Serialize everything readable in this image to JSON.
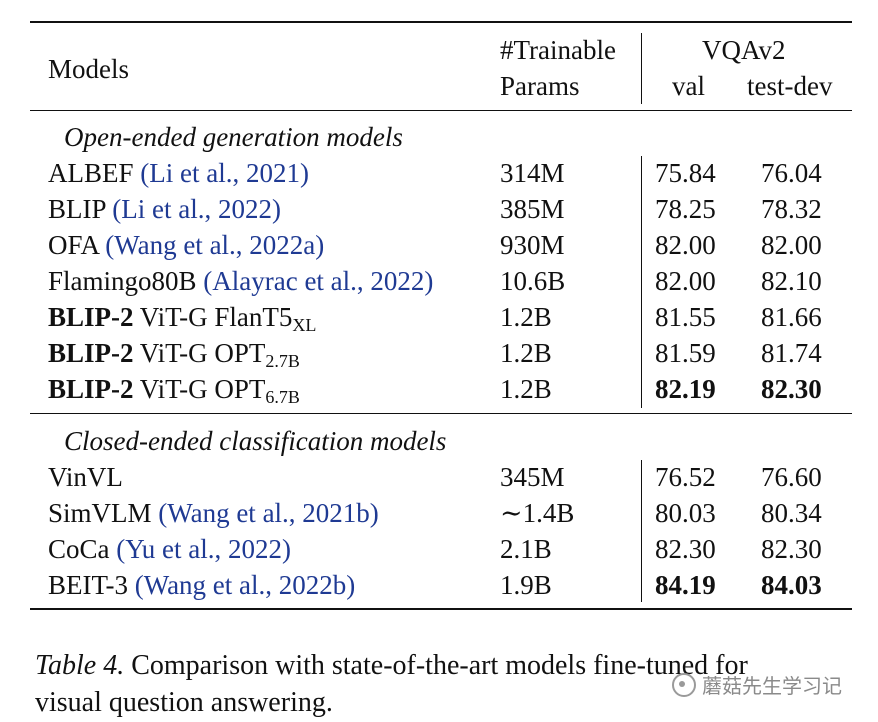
{
  "header": {
    "models": "Models",
    "params_line1": "#Trainable",
    "params_line2": "Params",
    "vqav2": "VQAv2",
    "val": "val",
    "test_dev": "test-dev"
  },
  "sections": [
    {
      "title": "Open-ended generation models",
      "rows": [
        {
          "name": "ALBEF",
          "cite": "(Li et al., 2021)",
          "params": "314M",
          "val": "75.84",
          "test": "76.04"
        },
        {
          "name": "BLIP",
          "cite": "(Li et al., 2022)",
          "params": "385M",
          "val": "78.25",
          "test": "78.32"
        },
        {
          "name": "OFA",
          "cite": "(Wang et al., 2022a)",
          "params": "930M",
          "val": "82.00",
          "test": "82.00"
        },
        {
          "name": "Flamingo80B",
          "cite": "(Alayrac et al., 2022)",
          "params": "10.6B",
          "val": "82.00",
          "test": "82.10"
        },
        {
          "bold": "BLIP-2",
          "name": "ViT-G FlanT5",
          "sub": "XL",
          "params": "1.2B",
          "val": "81.55",
          "test": "81.66"
        },
        {
          "bold": "BLIP-2",
          "name": "ViT-G OPT",
          "sub": "2.7B",
          "params": "1.2B",
          "val": "81.59",
          "test": "81.74"
        },
        {
          "bold": "BLIP-2",
          "name": "ViT-G OPT",
          "sub": "6.7B",
          "params": "1.2B",
          "val": "82.19",
          "test": "82.30"
        }
      ]
    },
    {
      "title": "Closed-ended classification models",
      "rows": [
        {
          "name": "VinVL",
          "cite": "",
          "params": "345M",
          "val": "76.52",
          "test": "76.60"
        },
        {
          "name": "SimVLM",
          "cite": "(Wang et al., 2021b)",
          "params": "∼1.4B",
          "val": "80.03",
          "test": "80.34"
        },
        {
          "name": "CoCa",
          "cite": "(Yu et al., 2022)",
          "params": "2.1B",
          "val": "82.30",
          "test": "82.30"
        },
        {
          "name": "BEIT-3",
          "cite": "(Wang et al., 2022b)",
          "params": "1.9B",
          "val": "84.19",
          "test": "84.03"
        }
      ]
    }
  ],
  "caption": {
    "label": "Table 4.",
    "line1": "Comparison with state-of-the-art models fine-tuned for",
    "line2": "visual question answering."
  },
  "watermark": "蘑菇先生学习记"
}
